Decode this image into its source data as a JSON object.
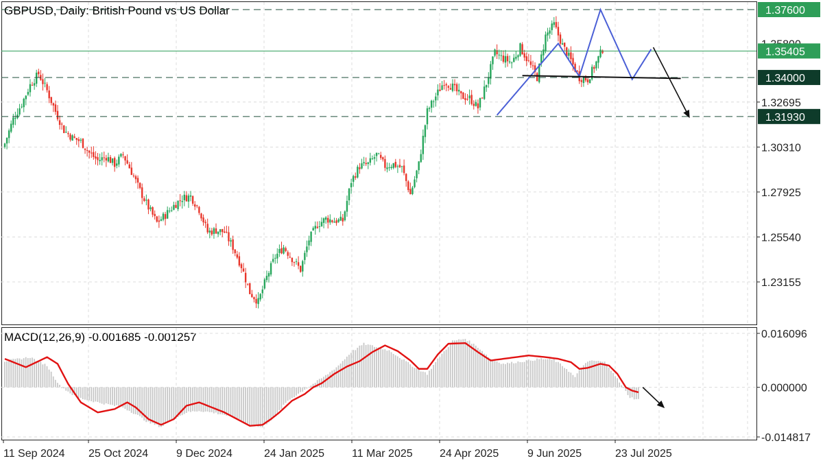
{
  "header": {
    "title": "GBPUSD, Daily:  British Pound vs US Dollar"
  },
  "macd_header": {
    "label": "MACD(12,26,9) -0.001685 -0.001257"
  },
  "colors": {
    "bull": "#26a65b",
    "bear": "#e8352a",
    "pattern": "#4a5fd6",
    "neckline": "#111111",
    "resistance_tag": "#2e9e58",
    "support_tag": "#0e3b2a",
    "signal_line": "#e11212",
    "macd_hist": "#c8c8c8",
    "grid": "#dcdcdc"
  },
  "chart_data": [
    {
      "type": "candlestick",
      "title": "GBPUSD, Daily:  British Pound vs US Dollar",
      "ylim": [
        1.209,
        1.38
      ],
      "price_ticks": [
        "1.32695",
        "1.30310",
        "1.27925",
        "1.25540",
        "1.23155"
      ],
      "date_labels": [
        "11 Sep 2024",
        "25 Oct 2024",
        "9 Dec 2024",
        "24 Jan 2025",
        "11 Mar 2025",
        "24 Apr 2025",
        "9 Jun 2025",
        "23 Jul 2025"
      ],
      "levels": [
        {
          "price": 1.376,
          "label": "1.37600",
          "style": "dashed",
          "tag": "resistance"
        },
        {
          "price": 1.35405,
          "label": "1.35405",
          "style": "solid",
          "tag": "current"
        },
        {
          "price": 1.34,
          "label": "1.34000",
          "style": "dashed",
          "tag": "support"
        },
        {
          "price": 1.3193,
          "label": "1.31930",
          "style": "dashed",
          "tag": "support"
        }
      ],
      "hidden_tick": "1.35800",
      "close_path": [
        [
          0,
          1.305
        ],
        [
          4,
          1.318
        ],
        [
          8,
          1.326
        ],
        [
          12,
          1.336
        ],
        [
          16,
          1.342
        ],
        [
          20,
          1.333
        ],
        [
          24,
          1.322
        ],
        [
          28,
          1.312
        ],
        [
          32,
          1.308
        ],
        [
          36,
          1.306
        ],
        [
          40,
          1.3
        ],
        [
          44,
          1.296
        ],
        [
          48,
          1.298
        ],
        [
          52,
          1.294
        ],
        [
          56,
          1.299
        ],
        [
          60,
          1.29
        ],
        [
          64,
          1.28
        ],
        [
          68,
          1.271
        ],
        [
          72,
          1.263
        ],
        [
          76,
          1.267
        ],
        [
          80,
          1.272
        ],
        [
          84,
          1.276
        ],
        [
          88,
          1.277
        ],
        [
          92,
          1.27
        ],
        [
          96,
          1.258
        ],
        [
          100,
          1.259
        ],
        [
          104,
          1.258
        ],
        [
          108,
          1.25
        ],
        [
          112,
          1.24
        ],
        [
          116,
          1.226
        ],
        [
          120,
          1.221
        ],
        [
          124,
          1.234
        ],
        [
          128,
          1.245
        ],
        [
          132,
          1.25
        ],
        [
          136,
          1.244
        ],
        [
          140,
          1.238
        ],
        [
          144,
          1.254
        ],
        [
          148,
          1.262
        ],
        [
          152,
          1.265
        ],
        [
          156,
          1.264
        ],
        [
          160,
          1.264
        ],
        [
          164,
          1.285
        ],
        [
          168,
          1.293
        ],
        [
          172,
          1.294
        ],
        [
          176,
          1.299
        ],
        [
          180,
          1.293
        ],
        [
          184,
          1.294
        ],
        [
          188,
          1.292
        ],
        [
          192,
          1.278
        ],
        [
          196,
          1.294
        ],
        [
          200,
          1.322
        ],
        [
          204,
          1.33
        ],
        [
          208,
          1.338
        ],
        [
          212,
          1.335
        ],
        [
          216,
          1.33
        ],
        [
          220,
          1.329
        ],
        [
          224,
          1.324
        ],
        [
          228,
          1.337
        ],
        [
          232,
          1.353
        ],
        [
          236,
          1.35
        ],
        [
          240,
          1.348
        ],
        [
          244,
          1.356
        ],
        [
          248,
          1.348
        ],
        [
          252,
          1.34
        ],
        [
          256,
          1.362
        ],
        [
          260,
          1.368
        ],
        [
          264,
          1.357
        ],
        [
          268,
          1.349
        ],
        [
          272,
          1.34
        ],
        [
          276,
          1.339
        ],
        [
          280,
          1.348
        ],
        [
          283,
          1.355
        ]
      ],
      "pattern": {
        "zigzag": [
          [
            233,
            1.32
          ],
          [
            262,
            1.358
          ],
          [
            272,
            1.3405
          ],
          [
            282,
            1.376
          ],
          [
            297,
            1.339
          ],
          [
            306,
            1.355
          ]
        ],
        "neckline": [
          [
            245,
            1.341
          ],
          [
            320,
            1.3395
          ]
        ],
        "forecast_arrow": [
          [
            307,
            1.356
          ],
          [
            324,
            1.319
          ]
        ]
      }
    },
    {
      "type": "bar+line",
      "title": "MACD(12,26,9) -0.001685 -0.001257",
      "ylim": [
        -0.014817,
        0.016096
      ],
      "y_ticks": [
        "0.016096",
        "0.000000",
        "-0.014817"
      ],
      "hist_keyframes": [
        [
          0,
          0.0078
        ],
        [
          12,
          0.009
        ],
        [
          20,
          0.0065
        ],
        [
          26,
          0.0005
        ],
        [
          34,
          -0.003
        ],
        [
          44,
          -0.0045
        ],
        [
          56,
          -0.006
        ],
        [
          62,
          -0.008
        ],
        [
          68,
          -0.0105
        ],
        [
          74,
          -0.0118
        ],
        [
          80,
          -0.0095
        ],
        [
          86,
          -0.0075
        ],
        [
          92,
          -0.007
        ],
        [
          98,
          -0.0075
        ],
        [
          104,
          -0.0082
        ],
        [
          110,
          -0.0095
        ],
        [
          116,
          -0.0112
        ],
        [
          122,
          -0.012
        ],
        [
          128,
          -0.0085
        ],
        [
          134,
          -0.004
        ],
        [
          140,
          -0.0015
        ],
        [
          146,
          0.001
        ],
        [
          152,
          0.0035
        ],
        [
          158,
          0.0065
        ],
        [
          164,
          0.0105
        ],
        [
          170,
          0.013
        ],
        [
          176,
          0.012
        ],
        [
          182,
          0.011
        ],
        [
          188,
          0.0085
        ],
        [
          194,
          0.006
        ],
        [
          200,
          0.004
        ],
        [
          206,
          0.0092
        ],
        [
          212,
          0.0138
        ],
        [
          218,
          0.0145
        ],
        [
          224,
          0.012
        ],
        [
          230,
          0.0085
        ],
        [
          236,
          0.007
        ],
        [
          242,
          0.0075
        ],
        [
          248,
          0.008
        ],
        [
          254,
          0.0085
        ],
        [
          260,
          0.0082
        ],
        [
          266,
          0.0055
        ],
        [
          270,
          0.003
        ],
        [
          274,
          0.0068
        ],
        [
          278,
          0.008
        ],
        [
          284,
          0.0075
        ],
        [
          288,
          0.0045
        ],
        [
          292,
          0.0005
        ],
        [
          296,
          -0.003
        ],
        [
          300,
          -0.0037
        ]
      ],
      "signal_keyframes": [
        [
          0,
          0.0085
        ],
        [
          10,
          0.006
        ],
        [
          20,
          0.009
        ],
        [
          25,
          0.007
        ],
        [
          30,
          0.001
        ],
        [
          36,
          -0.0045
        ],
        [
          44,
          -0.0075
        ],
        [
          52,
          -0.0065
        ],
        [
          58,
          -0.0045
        ],
        [
          62,
          -0.006
        ],
        [
          68,
          -0.0095
        ],
        [
          74,
          -0.0112
        ],
        [
          80,
          -0.0095
        ],
        [
          86,
          -0.0055
        ],
        [
          92,
          -0.0045
        ],
        [
          98,
          -0.006
        ],
        [
          104,
          -0.0075
        ],
        [
          110,
          -0.0095
        ],
        [
          116,
          -0.0115
        ],
        [
          122,
          -0.0112
        ],
        [
          126,
          -0.0095
        ],
        [
          130,
          -0.0075
        ],
        [
          136,
          -0.004
        ],
        [
          142,
          -0.002
        ],
        [
          146,
          0.0
        ],
        [
          150,
          0.0012
        ],
        [
          156,
          0.004
        ],
        [
          162,
          0.0062
        ],
        [
          168,
          0.0078
        ],
        [
          174,
          0.0105
        ],
        [
          180,
          0.0125
        ],
        [
          186,
          0.0108
        ],
        [
          192,
          0.008
        ],
        [
          196,
          0.0055
        ],
        [
          200,
          0.0055
        ],
        [
          205,
          0.0098
        ],
        [
          210,
          0.013
        ],
        [
          218,
          0.0132
        ],
        [
          224,
          0.0105
        ],
        [
          230,
          0.008
        ],
        [
          236,
          0.0085
        ],
        [
          242,
          0.009
        ],
        [
          248,
          0.0095
        ],
        [
          256,
          0.009
        ],
        [
          262,
          0.0085
        ],
        [
          268,
          0.0075
        ],
        [
          272,
          0.0055
        ],
        [
          276,
          0.0058
        ],
        [
          282,
          0.007
        ],
        [
          286,
          0.0065
        ],
        [
          290,
          0.004
        ],
        [
          294,
          0.0
        ],
        [
          297,
          -0.001
        ],
        [
          300,
          -0.0015
        ]
      ],
      "forecast_arrow": [
        [
          302,
          0.0
        ],
        [
          312,
          -0.006
        ]
      ]
    }
  ]
}
